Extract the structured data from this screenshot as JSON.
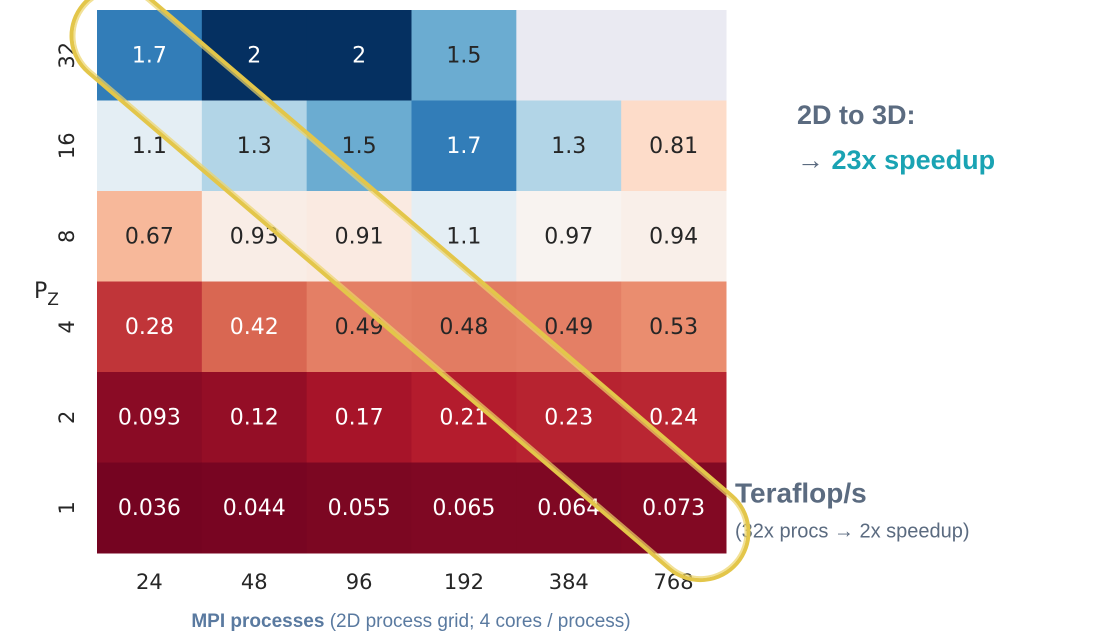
{
  "chart_data": {
    "type": "heatmap",
    "x_categories": [
      "24",
      "48",
      "96",
      "192",
      "384",
      "768"
    ],
    "y_categories": [
      "32",
      "16",
      "8",
      "4",
      "2",
      "1"
    ],
    "values": [
      [
        1.7,
        2,
        2,
        1.5,
        null,
        null
      ],
      [
        1.1,
        1.3,
        1.5,
        1.7,
        1.3,
        0.81
      ],
      [
        0.67,
        0.93,
        0.91,
        1.1,
        0.97,
        0.94
      ],
      [
        0.28,
        0.42,
        0.49,
        0.48,
        0.49,
        0.53
      ],
      [
        0.093,
        0.12,
        0.17,
        0.21,
        0.23,
        0.24
      ],
      [
        0.036,
        0.044,
        0.055,
        0.065,
        0.064,
        0.073
      ]
    ],
    "colormap": [
      "#67001f",
      "#b2182b",
      "#d6604d",
      "#f4a582",
      "#fddbc7",
      "#f7f7f7",
      "#d1e5f0",
      "#92c5de",
      "#4393c3",
      "#2166ac",
      "#053061"
    ],
    "clim": [
      0,
      2
    ],
    "missing_color": "#eaeaf2",
    "x_label": {
      "bold": "MPI processes",
      "rest": " (2D process grid; 4 cores / process)"
    },
    "y_label": {
      "base": "P",
      "sub": "Z"
    },
    "annotations": {
      "headline": "2D to 3D:",
      "arrow": "→ ",
      "speedup": "23x speedup",
      "unit": "Teraflop/s",
      "unit_note": "(32x procs → 2x speedup)"
    }
  }
}
